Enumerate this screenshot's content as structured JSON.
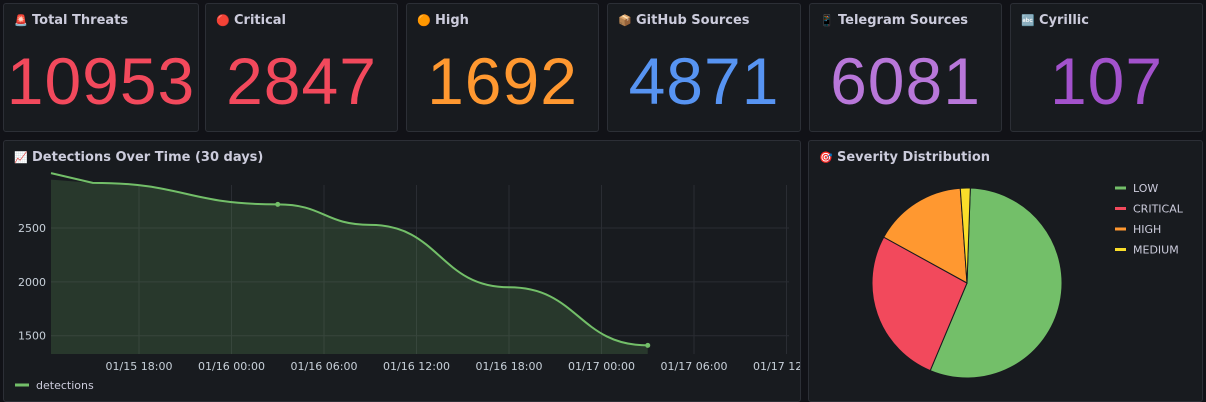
{
  "stats": [
    {
      "title": "Total Threats",
      "icon": "🚨",
      "icon_name": "alarm-light-icon",
      "value": "10953",
      "color": "#f2495c"
    },
    {
      "title": "Critical",
      "icon": "🔴",
      "icon_name": "red-circle-icon",
      "value": "2847",
      "color": "#f2495c"
    },
    {
      "title": "High",
      "icon": "🟠",
      "icon_name": "orange-circle-icon",
      "value": "1692",
      "color": "#ff9830"
    },
    {
      "title": "GitHub Sources",
      "icon": "📦",
      "icon_name": "package-icon",
      "value": "4871",
      "color": "#5794f2"
    },
    {
      "title": "Telegram Sources",
      "icon": "📱",
      "icon_name": "mobile-phone-icon",
      "value": "6081",
      "color": "#b877d9"
    },
    {
      "title": "Cyrillic",
      "icon": "🔤",
      "icon_name": "abc-letters-icon",
      "value": "107",
      "color": "#a352cc"
    }
  ],
  "timeseries": {
    "title": "Detections Over Time (30 days)",
    "icon": "📈",
    "icon_name": "chart-increasing-icon",
    "legend": "detections",
    "color": "#73bf69"
  },
  "pie": {
    "title": "Severity Distribution",
    "icon": "🎯",
    "icon_name": "target-icon"
  },
  "chart_data": [
    {
      "type": "area",
      "title": "Detections Over Time (30 days)",
      "series": [
        {
          "name": "detections",
          "x": [
            "01/15 15:00",
            "01/16 03:00",
            "01/16 09:00",
            "01/16 18:00",
            "01/17 03:00"
          ],
          "values": [
            2920,
            2720,
            2530,
            1950,
            1410
          ]
        }
      ],
      "x_ticks": [
        "01/15 18:00",
        "01/16 00:00",
        "01/16 06:00",
        "01/16 12:00",
        "01/16 18:00",
        "01/17 00:00",
        "01/17 06:00",
        "01/17 12:00"
      ],
      "y_ticks": [
        1500,
        2000,
        2500
      ],
      "ylim": [
        1330,
        2900
      ],
      "grid": true,
      "legend": "bottom-left"
    },
    {
      "type": "pie",
      "title": "Severity Distribution",
      "labels": [
        "LOW",
        "CRITICAL",
        "HIGH",
        "MEDIUM"
      ],
      "values": [
        5950,
        2847,
        1692,
        180
      ],
      "colors": [
        "#73bf69",
        "#f2495c",
        "#ff9830",
        "#fade2a"
      ],
      "legend": "right"
    }
  ]
}
